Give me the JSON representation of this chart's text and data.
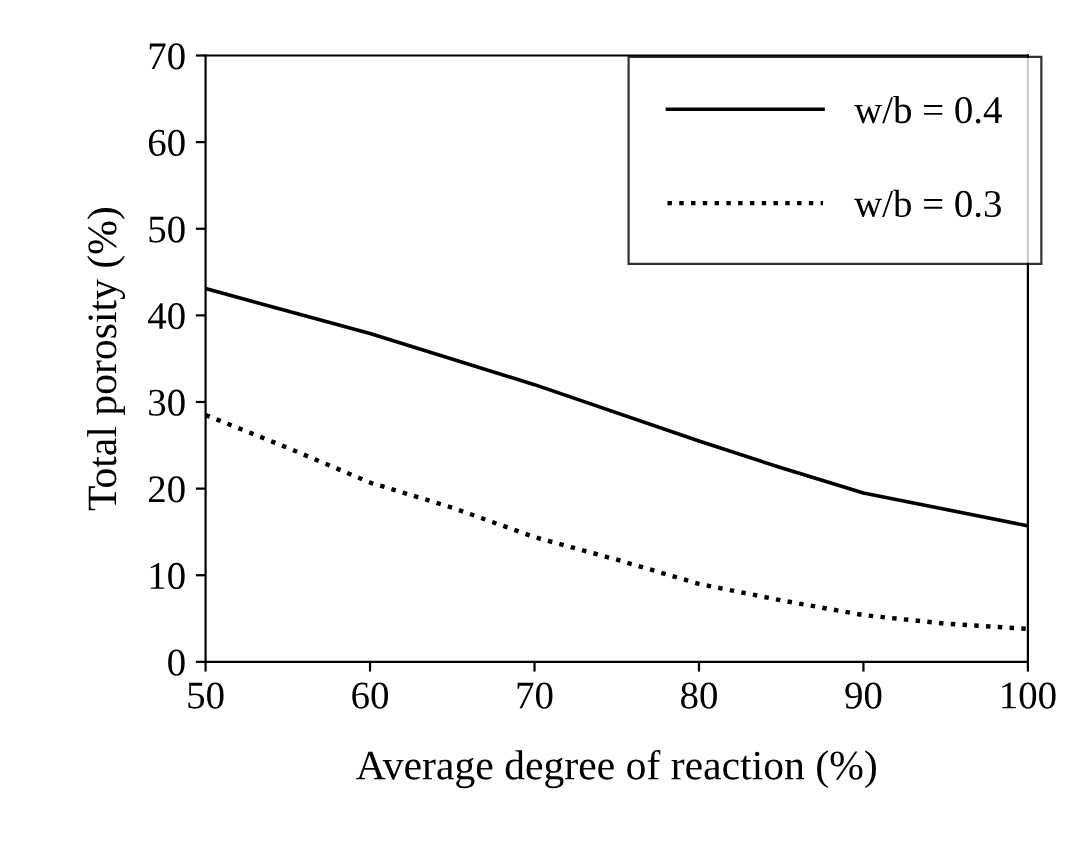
{
  "chart_data": {
    "type": "line",
    "xlabel": "Average degree of reaction (%)",
    "ylabel": "Total porosity (%)",
    "xlim": [
      50,
      100
    ],
    "xticks": [
      50,
      60,
      70,
      80,
      90,
      100
    ],
    "ylim": [
      0,
      70
    ],
    "yticks": [
      0,
      10,
      20,
      30,
      40,
      50,
      60,
      70
    ],
    "grid": false,
    "legend": "top right",
    "marker": "none",
    "series": [
      {
        "name": "w/b = 0.4",
        "color": "#000000",
        "line_style": "solid",
        "x": [
          50,
          60,
          70,
          80,
          85,
          90,
          100
        ],
        "values": [
          43.1,
          37.9,
          32.0,
          25.5,
          22.4,
          19.5,
          15.7
        ]
      },
      {
        "name": "w/b = 0.3",
        "color": "#000000",
        "line_style": "dotted",
        "x": [
          50,
          55,
          60,
          65,
          70,
          75,
          80,
          85,
          90,
          95,
          100
        ],
        "values": [
          28.5,
          24.7,
          20.7,
          17.8,
          14.4,
          11.8,
          9.0,
          7.1,
          5.4,
          4.4,
          3.8
        ]
      }
    ]
  }
}
